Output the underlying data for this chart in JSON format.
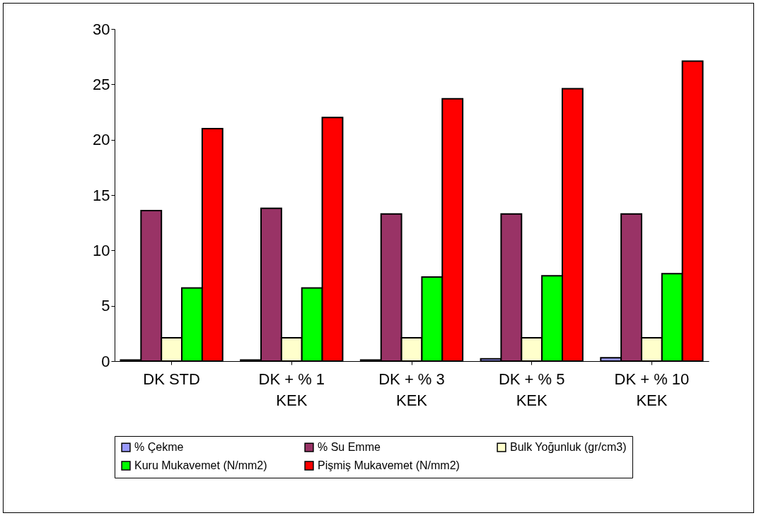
{
  "chart_data": {
    "type": "bar",
    "categories": [
      "DK STD",
      "DK + % 1 KEK",
      "DK + % 3 KEK",
      "DK +  % 5 KEK",
      "DK +  % 10 KEK"
    ],
    "series": [
      {
        "name": "% Çekme",
        "color": "#9999ff",
        "values": [
          0.1,
          0.1,
          0.1,
          0.2,
          0.3
        ]
      },
      {
        "name": "% Su Emme",
        "color": "#993366",
        "values": [
          13.6,
          13.8,
          13.3,
          13.3,
          13.3
        ]
      },
      {
        "name": "Bulk Yoğunluk (gr/cm3)",
        "color": "#ffffcc",
        "values": [
          2.1,
          2.1,
          2.1,
          2.1,
          2.1
        ]
      },
      {
        "name": "Kuru Mukavemet (N/mm2)",
        "color": "#00ff00",
        "values": [
          6.6,
          6.6,
          7.6,
          7.7,
          7.9
        ]
      },
      {
        "name": "Pişmiş Mukavemet (N/mm2)",
        "color": "#ff0000",
        "values": [
          21.0,
          22.0,
          23.7,
          24.6,
          27.1
        ]
      }
    ],
    "ylim": [
      0,
      30
    ],
    "yticks": [
      0,
      5,
      10,
      15,
      20,
      25,
      30
    ],
    "legend": "bottom"
  }
}
